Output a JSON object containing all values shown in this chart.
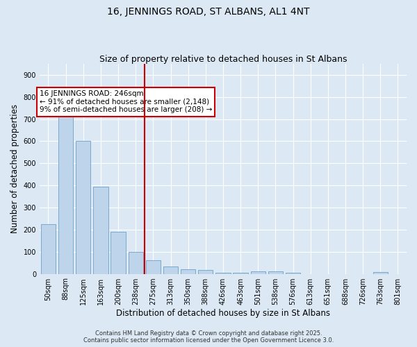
{
  "title": "16, JENNINGS ROAD, ST ALBANS, AL1 4NT",
  "subtitle": "Size of property relative to detached houses in St Albans",
  "xlabel": "Distribution of detached houses by size in St Albans",
  "ylabel": "Number of detached properties",
  "categories": [
    "50sqm",
    "88sqm",
    "125sqm",
    "163sqm",
    "200sqm",
    "238sqm",
    "275sqm",
    "313sqm",
    "350sqm",
    "388sqm",
    "426sqm",
    "463sqm",
    "501sqm",
    "538sqm",
    "576sqm",
    "613sqm",
    "651sqm",
    "688sqm",
    "726sqm",
    "763sqm",
    "801sqm"
  ],
  "values": [
    225,
    730,
    600,
    393,
    190,
    98,
    60,
    32,
    22,
    17,
    5,
    5,
    12,
    10,
    4,
    0,
    0,
    0,
    0,
    8,
    0
  ],
  "bar_color": "#bdd4eb",
  "bar_edgecolor": "#6aa0c8",
  "vline_x": 5.5,
  "vline_color": "#cc0000",
  "annotation_title": "16 JENNINGS ROAD: 246sqm",
  "annotation_line1": "← 91% of detached houses are smaller (2,148)",
  "annotation_line2": "9% of semi-detached houses are larger (208) →",
  "annotation_box_edgecolor": "#cc0000",
  "annotation_box_facecolor": "white",
  "background_color": "#dce9f5",
  "grid_color": "white",
  "ylim": [
    0,
    950
  ],
  "yticks": [
    0,
    100,
    200,
    300,
    400,
    500,
    600,
    700,
    800,
    900
  ],
  "footer1": "Contains HM Land Registry data © Crown copyright and database right 2025.",
  "footer2": "Contains public sector information licensed under the Open Government Licence 3.0.",
  "title_fontsize": 10,
  "subtitle_fontsize": 9,
  "tick_fontsize": 7,
  "ylabel_fontsize": 8.5,
  "xlabel_fontsize": 8.5,
  "footer_fontsize": 6,
  "annotation_fontsize": 7.5
}
